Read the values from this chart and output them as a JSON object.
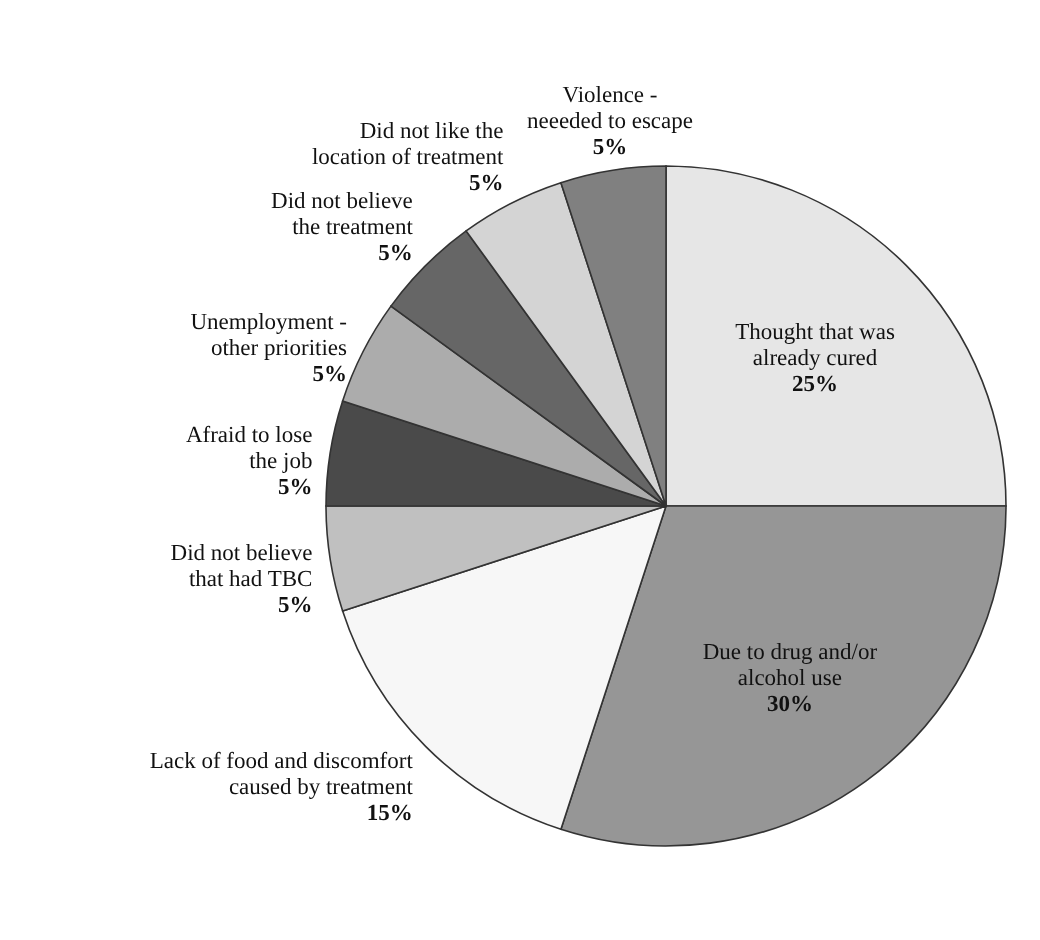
{
  "chart_data": {
    "type": "pie",
    "categories": [
      "Thought that was\nalready cured",
      "Due to drug and/or\nalcohol use",
      "Lack of food and discomfort\ncaused by treatment",
      "Did not believe\nthat had TBC",
      "Afraid to lose\nthe job",
      "Unemployment -\nother priorities",
      "Did not believe\nthe treatment",
      "Did not like the\nlocation of treatment",
      "Violence -\nneeeded to escape"
    ],
    "values": [
      25,
      30,
      15,
      5,
      5,
      5,
      5,
      5,
      5
    ],
    "value_labels": [
      "25%",
      "30%",
      "15%",
      "5%",
      "5%",
      "5%",
      "5%",
      "5%",
      "5%"
    ],
    "colors": [
      "#e6e6e6",
      "#969696",
      "#f7f7f7",
      "#c0c0c0",
      "#4a4a4a",
      "#acacac",
      "#666666",
      "#d4d4d4",
      "#808080"
    ]
  }
}
